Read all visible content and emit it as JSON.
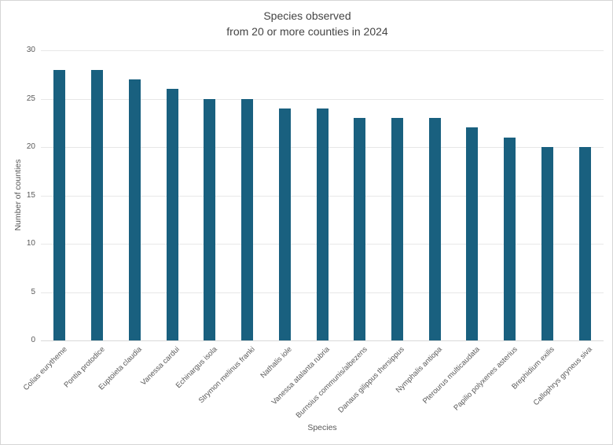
{
  "chart_data": {
    "type": "bar",
    "title": "Species observed from 20 or more counties in 2024",
    "title_lines": [
      "Species observed",
      "from 20 or more counties in 2024"
    ],
    "categories": [
      "Colias eurytheme",
      "Pontia protodice",
      "Euptoieta claudia",
      "Vanessa cardui",
      "Echinargus isola",
      "Strymon melinus franki",
      "Nathalis iole",
      "Vanessa atalanta rubria",
      "Burnsius communis/albezens",
      "Danaus gilippus thersippus",
      "Nymphalis antiopa",
      "Pterourus multicaudata",
      "Papilio polyxenes asterius",
      "Brephidium exilis",
      "Callophrys gryneus siva"
    ],
    "values": [
      28,
      28,
      27,
      26,
      25,
      25,
      24,
      24,
      23,
      23,
      23,
      22,
      21,
      20,
      20
    ],
    "xlabel": "Species",
    "ylabel": "Number of counties",
    "ylim": [
      0,
      30
    ],
    "yticks": [
      0,
      5,
      10,
      15,
      20,
      25,
      30
    ],
    "grid": true,
    "legend": false,
    "colors": {
      "bar": "#19607f",
      "gridline": "#e7e7e7",
      "axis_line": "#d9d9d9",
      "tick_label": "#595959",
      "title": "#444444"
    }
  }
}
